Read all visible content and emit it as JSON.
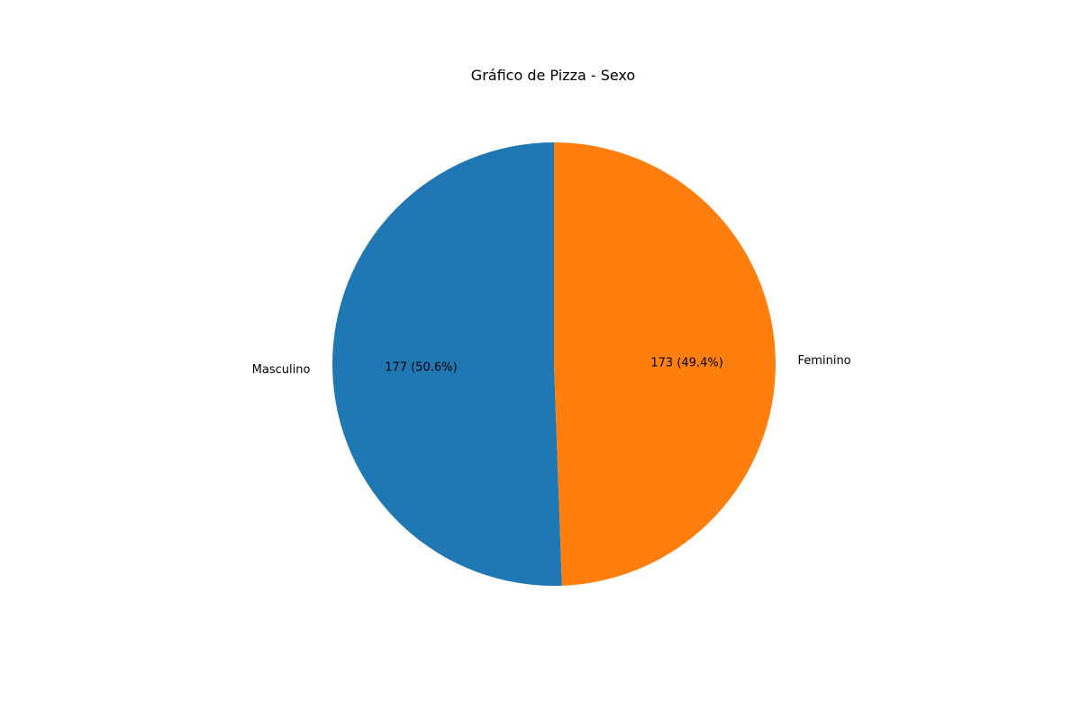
{
  "chart_data": {
    "type": "pie",
    "title": "Gráfico de Pizza - Sexo",
    "categories": [
      "Masculino",
      "Feminino"
    ],
    "values": [
      177,
      173
    ],
    "percent_labels": [
      "177 (50.6%)",
      "173 (49.4%)"
    ],
    "colors": [
      "#1f77b4",
      "#ff7f0e"
    ],
    "start_angle_deg": 90,
    "direction": "counterclockwise"
  }
}
